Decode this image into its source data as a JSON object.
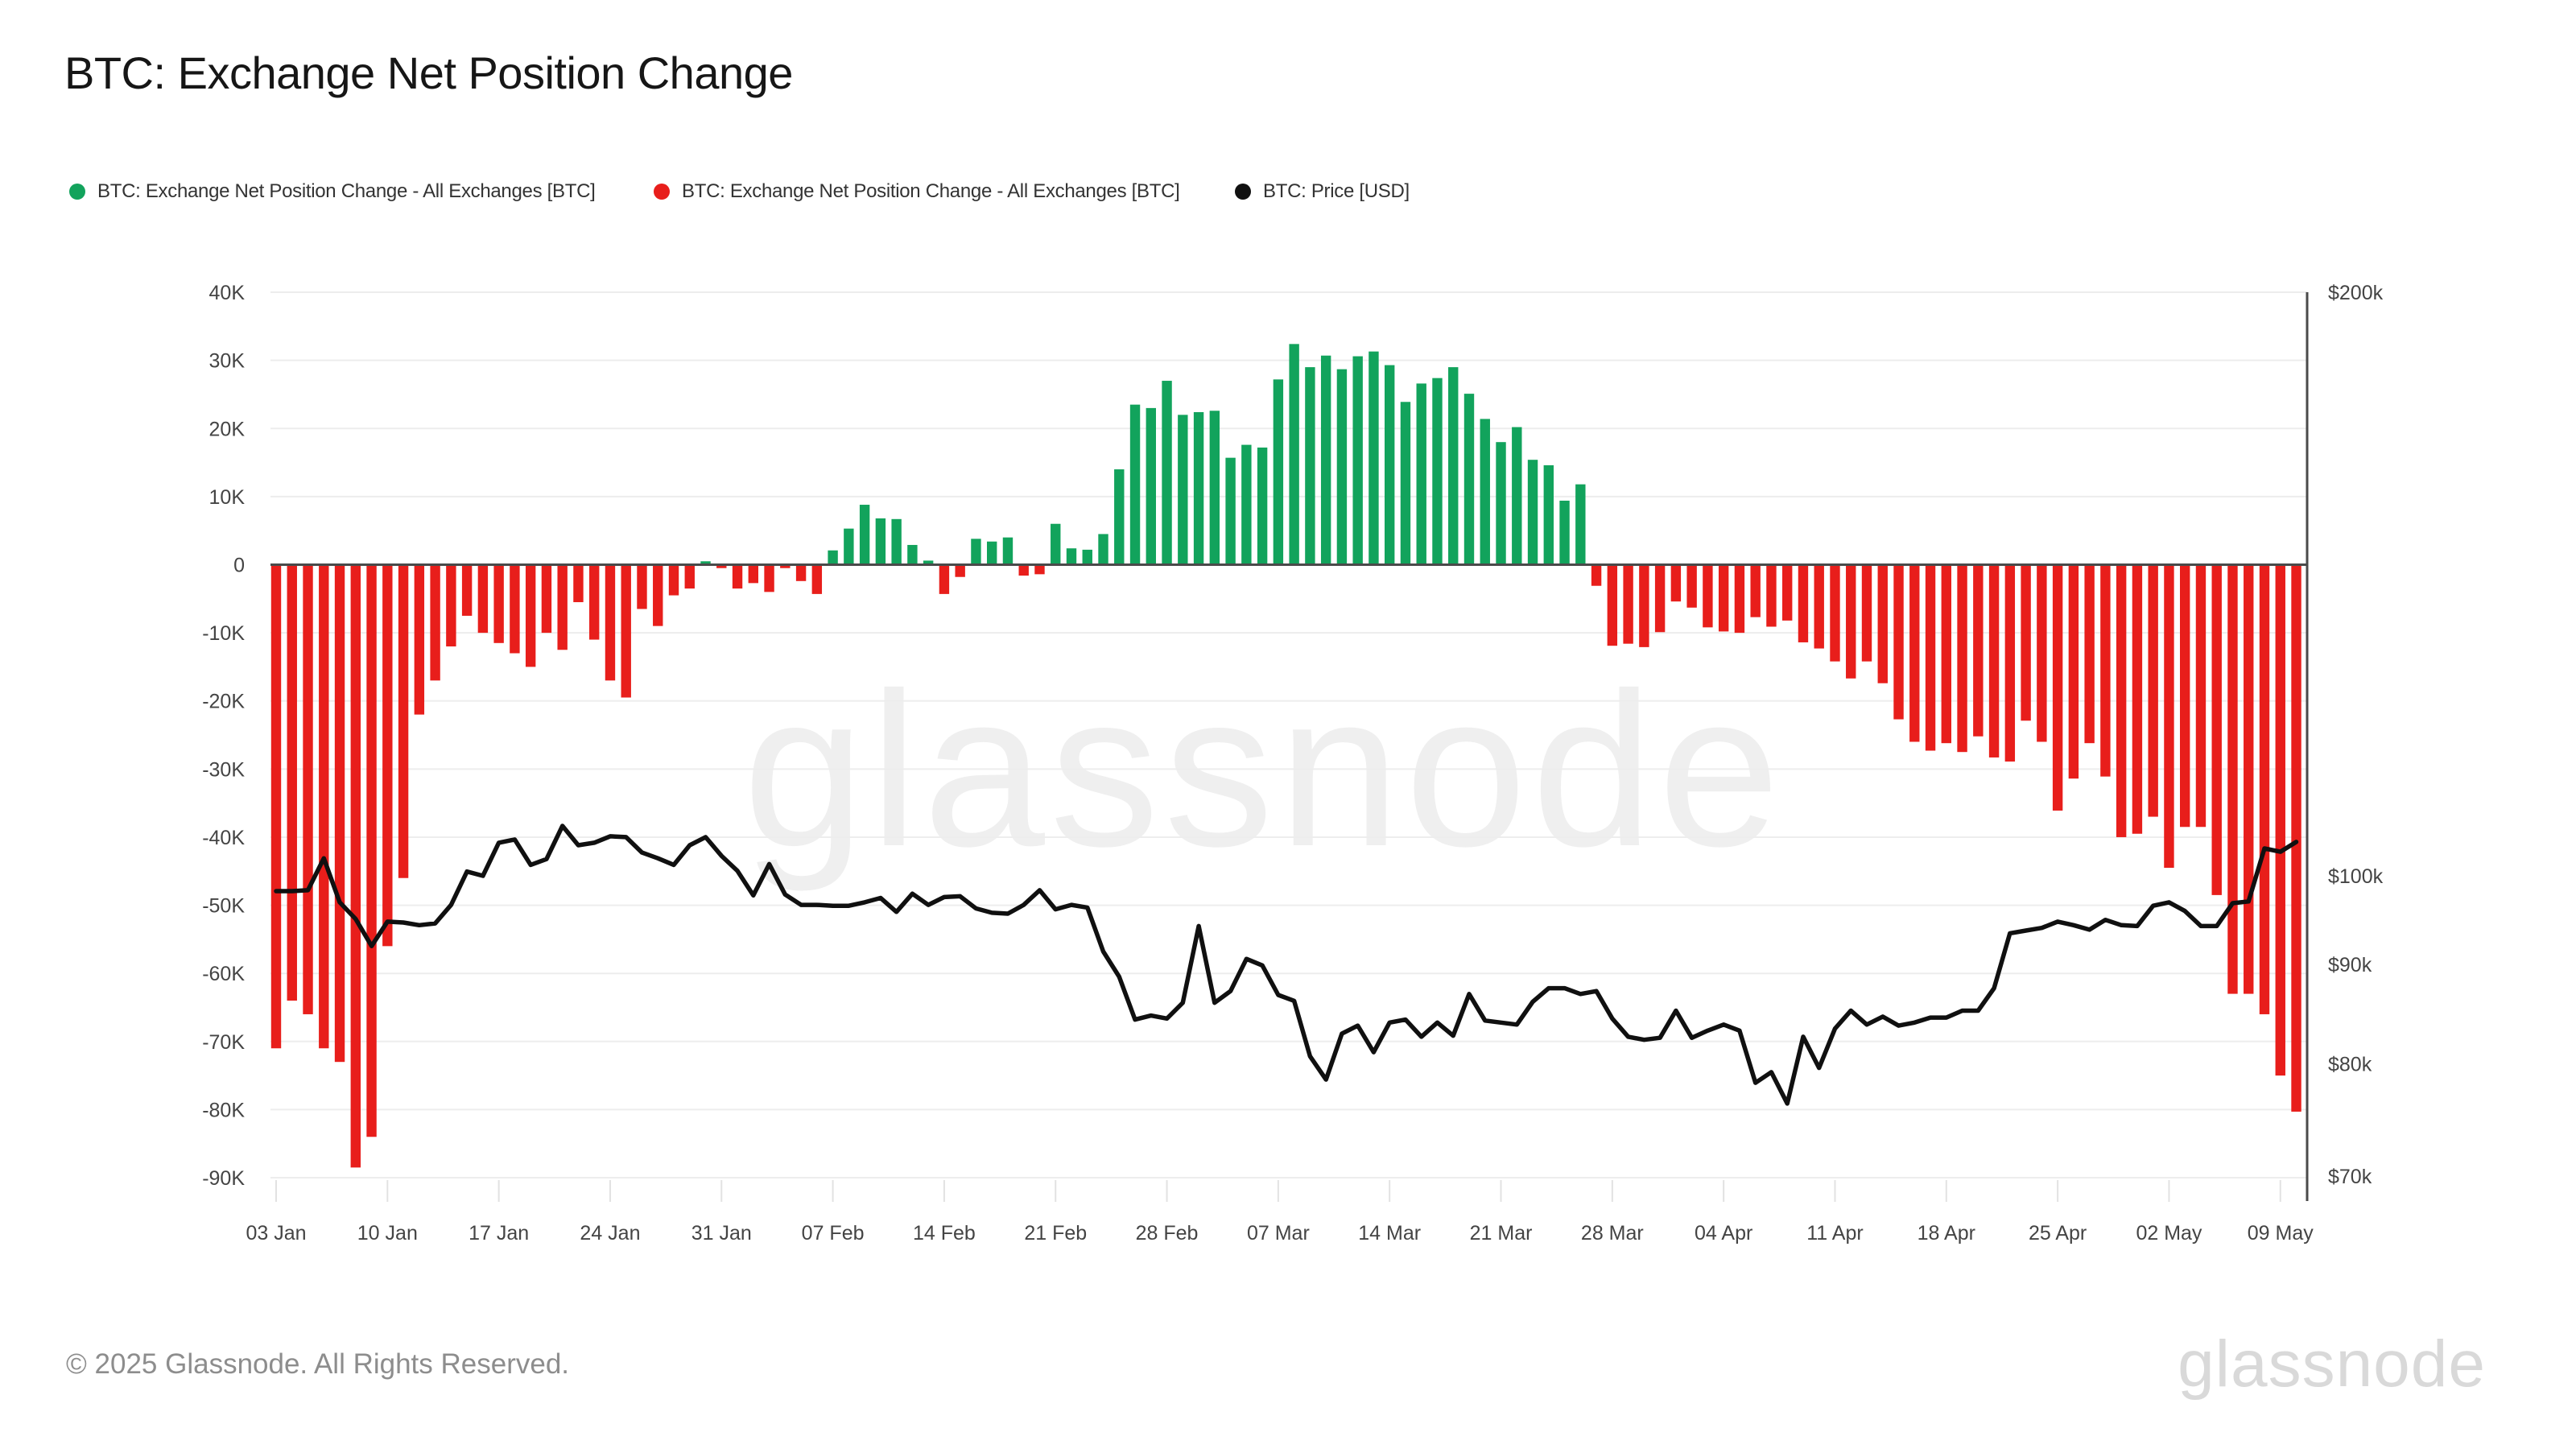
{
  "page": {
    "title": "BTC: Exchange Net Position Change",
    "footer": {
      "copyright": "© 2025 Glassnode. All Rights Reserved.",
      "logo_text": "glassnode"
    },
    "watermark": "glassnode"
  },
  "legend": {
    "items": [
      {
        "label": "BTC: Exchange Net Position Change - All Exchanges [BTC]",
        "color": "#12a35c",
        "marker": "circle"
      },
      {
        "label": "BTC: Exchange Net Position Change - All Exchanges [BTC]",
        "color": "#e81e1b",
        "marker": "circle"
      },
      {
        "label": "BTC: Price [USD]",
        "color": "#111111",
        "marker": "circle"
      }
    ]
  },
  "chart_data": {
    "type": "bar+line",
    "title": "BTC: Exchange Net Position Change",
    "x_start_label": "03 Jan",
    "x_end_label": "09 May",
    "days": 128,
    "x_axis": {
      "ticks": [
        {
          "i": 0,
          "label": "03 Jan"
        },
        {
          "i": 7,
          "label": "10 Jan"
        },
        {
          "i": 14,
          "label": "17 Jan"
        },
        {
          "i": 21,
          "label": "24 Jan"
        },
        {
          "i": 28,
          "label": "31 Jan"
        },
        {
          "i": 35,
          "label": "07 Feb"
        },
        {
          "i": 42,
          "label": "14 Feb"
        },
        {
          "i": 49,
          "label": "21 Feb"
        },
        {
          "i": 56,
          "label": "28 Feb"
        },
        {
          "i": 63,
          "label": "07 Mar"
        },
        {
          "i": 70,
          "label": "14 Mar"
        },
        {
          "i": 77,
          "label": "21 Mar"
        },
        {
          "i": 84,
          "label": "28 Mar"
        },
        {
          "i": 91,
          "label": "04 Apr"
        },
        {
          "i": 98,
          "label": "11 Apr"
        },
        {
          "i": 105,
          "label": "18 Apr"
        },
        {
          "i": 112,
          "label": "25 Apr"
        },
        {
          "i": 119,
          "label": "02 May"
        },
        {
          "i": 126,
          "label": "09 May"
        }
      ]
    },
    "left_axis": {
      "unit": "BTC",
      "ylim": [
        -90,
        40
      ],
      "ticks": [
        {
          "v": 40,
          "label": "40K"
        },
        {
          "v": 30,
          "label": "30K"
        },
        {
          "v": 20,
          "label": "20K"
        },
        {
          "v": 10,
          "label": "10K"
        },
        {
          "v": 0,
          "label": "0"
        },
        {
          "v": -10,
          "label": "-10K"
        },
        {
          "v": -20,
          "label": "-20K"
        },
        {
          "v": -30,
          "label": "-30K"
        },
        {
          "v": -40,
          "label": "-40K"
        },
        {
          "v": -50,
          "label": "-50K"
        },
        {
          "v": -60,
          "label": "-60K"
        },
        {
          "v": -70,
          "label": "-70K"
        },
        {
          "v": -80,
          "label": "-80K"
        },
        {
          "v": -90,
          "label": "-90K"
        }
      ]
    },
    "right_axis": {
      "unit": "USD",
      "scale": "log",
      "min": 70,
      "max": 200,
      "ticks": [
        {
          "v": 200,
          "label": "$200k"
        },
        {
          "v": 100,
          "label": "$100k"
        },
        {
          "v": 90,
          "label": "$90k"
        },
        {
          "v": 80,
          "label": "$80k"
        },
        {
          "v": 70,
          "label": "$70k"
        }
      ]
    },
    "series": [
      {
        "name": "BTC: Exchange Net Position Change - All Exchanges [BTC]",
        "type": "bar",
        "positive_color": "#12a35c",
        "negative_color": "#e81e1b",
        "unit": "K BTC",
        "values": [
          -71,
          -64,
          -66,
          -71,
          -73,
          -88.5,
          -84,
          -56,
          -46,
          -22,
          -17,
          -12,
          -7.5,
          -10,
          -11.5,
          -13,
          -15,
          -10,
          -12.5,
          -5.5,
          -11,
          -17,
          -19.5,
          -6.5,
          -9,
          -4.5,
          -3.5,
          0.5,
          -0.5,
          -3.5,
          -2.7,
          -4,
          -0.5,
          -2.4,
          -4.3,
          2.1,
          5.3,
          8.8,
          6.8,
          6.7,
          2.9,
          0.6,
          -4.3,
          -1.8,
          3.8,
          3.4,
          4,
          -1.6,
          -1.4,
          6,
          2.4,
          2.2,
          4.5,
          14,
          23.5,
          23,
          27,
          22,
          22.4,
          22.6,
          15.7,
          17.6,
          17.2,
          27.2,
          32.4,
          29,
          30.7,
          28.7,
          30.6,
          31.3,
          29.3,
          23.9,
          26.6,
          27.4,
          29,
          25.1,
          21.4,
          18,
          20.2,
          15.4,
          14.6,
          9.4,
          11.8,
          -3.1,
          -11.9,
          -11.6,
          -12.1,
          -9.9,
          -5.4,
          -6.3,
          -9.2,
          -9.8,
          -10,
          -7.7,
          -9.1,
          -8.2,
          -11.4,
          -12.3,
          -14.2,
          -16.7,
          -14.2,
          -17.4,
          -22.7,
          -26,
          -27.3,
          -26.2,
          -27.5,
          -25.2,
          -28.3,
          -28.9,
          -22.9,
          -26,
          -36.1,
          -31.4,
          -26.2,
          -31.1,
          -40,
          -39.5,
          -37,
          -44.5,
          -38.5,
          -38.5,
          -48.5,
          -63,
          -63,
          -66,
          -75,
          -80.3
        ]
      },
      {
        "name": "BTC: Price [USD]",
        "type": "line",
        "color": "#101010",
        "unit": "USD thousands",
        "values": [
          98.2,
          98.2,
          98.3,
          102.1,
          96.9,
          95,
          92,
          94.7,
          94.6,
          94.3,
          94.5,
          96.6,
          100.5,
          100,
          104,
          104.4,
          101.3,
          102,
          106.1,
          103.7,
          104,
          104.8,
          104.7,
          102.8,
          102.1,
          101.3,
          103.7,
          104.7,
          102.4,
          100.6,
          97.7,
          101.4,
          97.8,
          96.6,
          96.6,
          96.5,
          96.5,
          96.9,
          97.4,
          95.8,
          97.9,
          96.6,
          97.5,
          97.6,
          96.2,
          95.7,
          95.6,
          96.6,
          98.3,
          96.1,
          96.6,
          96.3,
          91.4,
          88.7,
          84.3,
          84.7,
          84.4,
          86,
          94.2,
          86,
          87.2,
          90.6,
          89.9,
          86.8,
          86.2,
          80.7,
          78.5,
          82.9,
          83.7,
          81.1,
          84,
          84.3,
          82.6,
          84,
          82.7,
          86.9,
          84.2,
          84,
          83.8,
          86.1,
          87.5,
          87.5,
          86.9,
          87.2,
          84.4,
          82.6,
          82.3,
          82.5,
          85.2,
          82.5,
          83.2,
          83.8,
          83.2,
          78.2,
          79.2,
          76.3,
          82.6,
          79.6,
          83.4,
          85.2,
          83.8,
          84.6,
          83.7,
          84,
          84.5,
          84.5,
          85.2,
          85.2,
          87.5,
          93.4,
          93.7,
          94,
          94.7,
          94.3,
          93.8,
          94.9,
          94.3,
          94.2,
          96.5,
          96.9,
          95.9,
          94.2,
          94.2,
          96.8,
          97,
          103.3,
          102.9,
          104.1
        ]
      }
    ],
    "layout_hints": {
      "grid": "horizontal-light",
      "legend_position": "top-left",
      "zero_line_color": "#4a4a4a",
      "gridline_color": "#ededed",
      "tick_label_color": "#444444"
    }
  }
}
